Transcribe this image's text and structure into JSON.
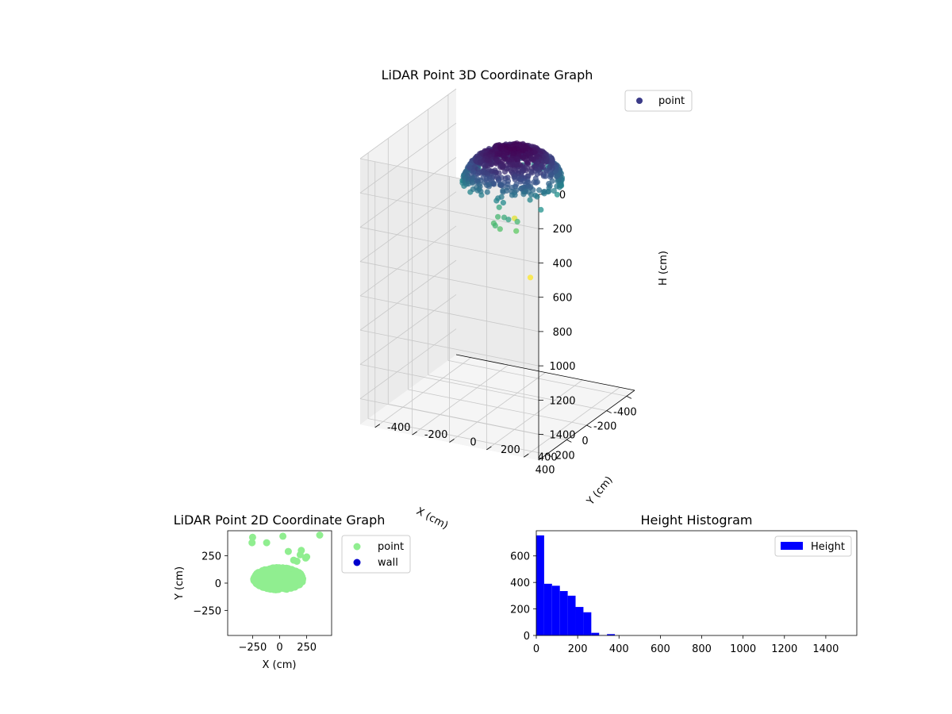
{
  "chart_data": [
    {
      "type": "scatter3d",
      "title": "LiDAR Point 3D Coordinate Graph",
      "xlabel": "X (cm)",
      "ylabel": "Y (cm)",
      "zlabel": "H (cm)",
      "xlim": [
        -480,
        480
      ],
      "ylim": [
        -480,
        480
      ],
      "zlim": [
        1550,
        0
      ],
      "xticks": [
        -400,
        -200,
        0,
        200,
        400
      ],
      "yticks": [
        -400,
        -200,
        0,
        200,
        400
      ],
      "zticks": [
        0,
        200,
        400,
        600,
        800,
        1000,
        1200,
        1400
      ],
      "legend": {
        "entries": [
          "point"
        ],
        "placement": "upper-right"
      },
      "colormap": [
        "#440154",
        "#3b528b",
        "#21918c",
        "#5ec962",
        "#fde725"
      ],
      "marker_color": "#3b3b88",
      "grid": true,
      "series": [
        {
          "name": "point",
          "cluster": {
            "center": [
              -40,
              60
            ],
            "radius": 240,
            "h_range": [
              40,
              260
            ],
            "count": 900
          },
          "outliers": [
            {
              "x": 160,
              "y": 320,
              "h": 260
            },
            {
              "x": 210,
              "y": 220,
              "h": 330
            },
            {
              "x": 240,
              "y": 230,
              "h": 370
            },
            {
              "x": 290,
              "y": 170,
              "h": 350
            },
            {
              "x": 300,
              "y": 150,
              "h": 330
            },
            {
              "x": 260,
              "y": 120,
              "h": 340
            },
            {
              "x": 230,
              "y": 160,
              "h": 310
            },
            {
              "x": 280,
              "y": 210,
              "h": 290
            },
            {
              "x": 200,
              "y": 110,
              "h": 330
            },
            {
              "x": 470,
              "y": 430,
              "h": 500
            },
            {
              "x": -60,
              "y": 60,
              "h": 460
            },
            {
              "x": 150,
              "y": 90,
              "h": 300
            }
          ]
        }
      ]
    },
    {
      "type": "scatter",
      "title": "LiDAR Point 2D Coordinate Graph",
      "xlabel": "X (cm)",
      "ylabel": "Y (cm)",
      "xlim": [
        -480,
        480
      ],
      "ylim": [
        -480,
        480
      ],
      "xticks": [
        -250,
        0,
        250
      ],
      "yticks": [
        -250,
        0,
        250
      ],
      "legend": {
        "entries": [
          "point",
          "wall"
        ],
        "placement": "outside-right"
      },
      "series": [
        {
          "name": "point",
          "color": "#90ee90",
          "cluster": {
            "center": [
              -10,
              40
            ],
            "rx": 230,
            "ry": 170,
            "count": 900
          },
          "outliers": [
            [
              -250,
              420
            ],
            [
              -255,
              370
            ],
            [
              -120,
              370
            ],
            [
              30,
              430
            ],
            [
              370,
              440
            ],
            [
              200,
              300
            ],
            [
              190,
              260
            ],
            [
              240,
              230
            ],
            [
              80,
              290
            ],
            [
              160,
              200
            ],
            [
              250,
              240
            ],
            [
              130,
              210
            ]
          ]
        },
        {
          "name": "wall",
          "color": "#0000cd",
          "points": []
        }
      ]
    },
    {
      "type": "histogram",
      "title": "Height Histogram",
      "xlim": [
        0,
        1550
      ],
      "ylim": [
        0,
        790
      ],
      "xticks": [
        0,
        200,
        400,
        600,
        800,
        1000,
        1200,
        1400
      ],
      "yticks": [
        0,
        200,
        400,
        600
      ],
      "legend": {
        "entries": [
          "Height"
        ],
        "placement": "upper-right"
      },
      "color": "#0000ff",
      "bin_width": 38,
      "bins_start": 0,
      "counts": [
        755,
        390,
        375,
        335,
        300,
        215,
        175,
        20,
        2,
        10,
        0,
        0,
        0,
        0,
        0,
        0,
        0,
        0,
        0,
        0,
        0,
        0,
        0,
        0,
        0,
        0,
        0,
        0,
        0,
        0,
        0,
        0,
        0,
        0,
        0,
        0,
        0,
        0,
        0,
        0
      ]
    }
  ]
}
